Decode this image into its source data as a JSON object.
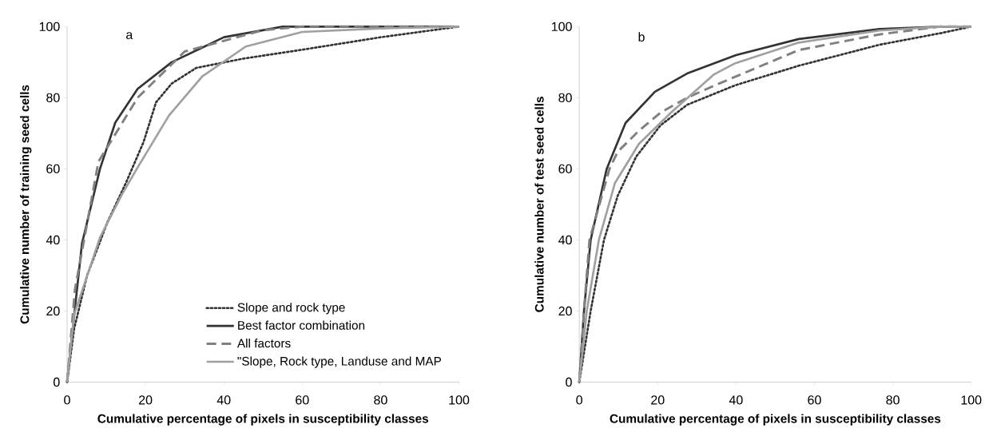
{
  "chart_data": [
    {
      "type": "line",
      "xlabel": "Cumulative percentage of pixels in susceptibility classes",
      "ylabel": "Cumulative number of training seed cells",
      "annotations": [
        "a"
      ],
      "xlim": [
        0,
        100
      ],
      "ylim": [
        0,
        100
      ],
      "xticks": [
        0,
        20,
        40,
        60,
        80,
        100
      ],
      "yticks": [
        0,
        20,
        40,
        60,
        80,
        100
      ],
      "grid": false,
      "legend": "bottom right",
      "series": [
        {
          "name": "Slope and rock type",
          "color": "#333333",
          "line_style": "dotted",
          "x": [
            0,
            1.8,
            5.1,
            10.3,
            15,
            19.5,
            22.7,
            26.7,
            33,
            45,
            60,
            80,
            100
          ],
          "values": [
            0,
            15,
            30,
            45,
            56,
            67.5,
            78.7,
            84,
            88.4,
            91,
            93.5,
            97,
            100
          ]
        },
        {
          "name": "Best factor combination",
          "color": "#333333",
          "line_style": "solid",
          "x": [
            0,
            2.2,
            3.8,
            8.4,
            12.3,
            18,
            26.7,
            40,
            55,
            100
          ],
          "values": [
            0,
            22.8,
            39,
            60,
            73,
            82.5,
            90,
            97,
            100,
            100
          ]
        },
        {
          "name": "All factors",
          "color": "#808080",
          "line_style": "dashed",
          "x": [
            0,
            2,
            8,
            18,
            30,
            50,
            60,
            100
          ],
          "values": [
            0,
            26,
            62,
            80,
            93,
            99,
            100,
            100
          ]
        },
        {
          "name": "\"Slope, Rock type, Landuse  and MAP",
          "color": "#a0a0a0",
          "line_style": "solid",
          "x": [
            0,
            1.8,
            8.4,
            13.9,
            17.8,
            26,
            34.5,
            45.6,
            60,
            80,
            100
          ],
          "values": [
            0,
            19,
            40.7,
            52.6,
            60,
            75,
            86,
            94.4,
            98.5,
            99.5,
            100
          ]
        }
      ]
    },
    {
      "type": "line",
      "xlabel": "Cumulative percentage of pixels in susceptibility classes",
      "ylabel": "Cumulative number of test  seed cells",
      "annotations": [
        "b"
      ],
      "xlim": [
        0,
        100
      ],
      "ylim": [
        0,
        100
      ],
      "xticks": [
        0,
        20,
        40,
        60,
        80,
        100
      ],
      "yticks": [
        0,
        20,
        40,
        60,
        80,
        100
      ],
      "grid": false,
      "series": [
        {
          "color": "#333333",
          "line_style": "dotted",
          "x": [
            0,
            2.9,
            6.3,
            9.8,
            14.5,
            20.7,
            27.5,
            39.8,
            56,
            76.6,
            92.4,
            100
          ],
          "values": [
            0,
            20,
            40,
            52.4,
            63.4,
            72.2,
            78,
            83.5,
            89,
            94.9,
            98.2,
            100
          ]
        },
        {
          "color": "#333333",
          "line_style": "solid",
          "x": [
            0,
            1.2,
            2.9,
            7,
            11.8,
            19.3,
            27.5,
            40,
            56,
            76.6,
            92,
            100
          ],
          "values": [
            0,
            20,
            40,
            60,
            72.9,
            81.7,
            86.8,
            92,
            96.5,
            99.3,
            100,
            100
          ]
        },
        {
          "color": "#808080",
          "line_style": "dashed",
          "x": [
            0,
            1.2,
            2.6,
            7.7,
            9.8,
            15.2,
            20.7,
            27.5,
            35.7,
            56,
            76.6,
            92,
            100
          ],
          "values": [
            0,
            20,
            40,
            60,
            64.8,
            70.7,
            75.8,
            80,
            84,
            93.4,
            97.8,
            100,
            100
          ]
        },
        {
          "color": "#a0a0a0",
          "line_style": "solid",
          "x": [
            0,
            1.9,
            5,
            9.1,
            15.2,
            23.4,
            34.3,
            39.8,
            56,
            76.6,
            92,
            100
          ],
          "values": [
            0,
            20,
            40,
            56,
            67,
            75.8,
            86.5,
            89.7,
            95.5,
            98.9,
            100,
            100
          ]
        }
      ]
    }
  ]
}
